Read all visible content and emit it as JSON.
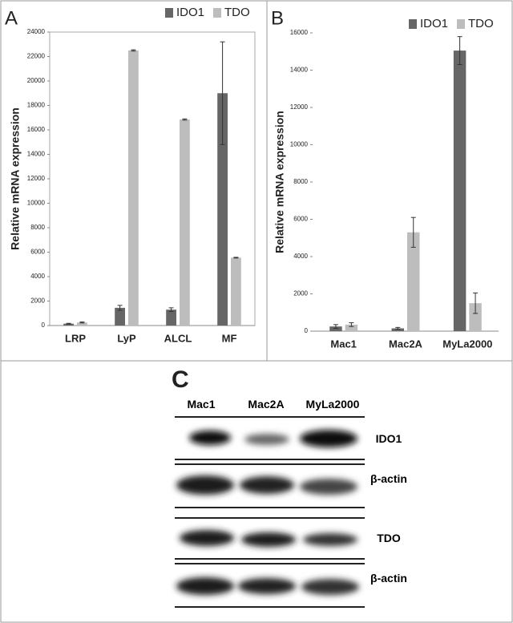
{
  "chart_data": [
    {
      "type": "bar",
      "panel_label": "A",
      "y_label": "Relative mRNA expression",
      "categories": [
        "LRP",
        "LyP",
        "ALCL",
        "MF"
      ],
      "series": [
        {
          "name": "IDO1",
          "color": "#666666",
          "values": [
            150,
            1450,
            1300,
            19000
          ],
          "errors": [
            30,
            200,
            150,
            4200
          ]
        },
        {
          "name": "TDO",
          "color": "#bdbdbd",
          "values": [
            250,
            22500,
            16850,
            5550
          ],
          "errors": [
            40,
            50,
            50,
            30
          ]
        }
      ],
      "ylim": [
        0,
        24000
      ],
      "yticks": [
        0,
        2000,
        4000,
        6000,
        8000,
        10000,
        12000,
        14000,
        16000,
        18000,
        20000,
        22000,
        24000
      ],
      "legend": "top-right"
    },
    {
      "type": "bar",
      "panel_label": "B",
      "y_label": "Relative mRNA expression",
      "categories": [
        "Mac1",
        "Mac2A",
        "MyLa2000"
      ],
      "series": [
        {
          "name": "IDO1",
          "color": "#666666",
          "values": [
            250,
            150,
            15050
          ],
          "errors": [
            100,
            50,
            750
          ]
        },
        {
          "name": "TDO",
          "color": "#bdbdbd",
          "values": [
            350,
            5300,
            1500
          ],
          "errors": [
            100,
            800,
            550
          ]
        }
      ],
      "ylim": [
        0,
        16000
      ],
      "yticks": [
        0,
        2000,
        4000,
        6000,
        8000,
        10000,
        12000,
        14000,
        16000
      ],
      "legend": "top-right"
    }
  ],
  "blot": {
    "panel_label": "C",
    "lanes": [
      "Mac1",
      "Mac2A",
      "MyLa2000"
    ],
    "rows": [
      "IDO1",
      "β-actin",
      "TDO",
      "β-actin"
    ]
  }
}
